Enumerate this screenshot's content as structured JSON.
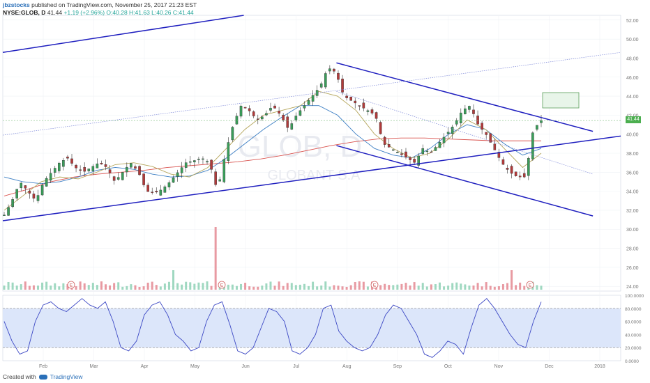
{
  "header": {
    "author": "jbzstocks",
    "published_text": "published on TradingView.com, November 25, 2017 21:23 EST",
    "symbol_line": "NYSE:GLOB, D",
    "last": "41.44",
    "change": "+1.19 (+2.96%)",
    "ohlc": "O:40.28 H:41.63 L:40.26 C:41.44"
  },
  "watermark": {
    "ticker": "GLOB, D",
    "name": "GLOBANT S.A"
  },
  "footer": {
    "created_with": "Created with",
    "brand": "TradingView"
  },
  "price_tag": "41.44",
  "chart_data": [
    {
      "type": "candlestick",
      "y_axis": {
        "ticks": [
          "52.00",
          "50.00",
          "48.00",
          "46.00",
          "44.00",
          "42.00",
          "40.00",
          "38.00",
          "36.00",
          "34.00",
          "32.00",
          "30.00",
          "28.00",
          "26.00",
          "24.00"
        ],
        "ylim": [
          23.5,
          52.5
        ]
      },
      "x_axis": {
        "ticks": [
          "Feb",
          "Mar",
          "Apr",
          "May",
          "Jun",
          "Jul",
          "Aug",
          "Sep",
          "Oct",
          "Nov",
          "Dec",
          "2018"
        ]
      },
      "close_path": [
        31.5,
        33.0,
        35.0,
        34.0,
        33.0,
        35.0,
        36.0,
        37.0,
        37.5,
        36.5,
        36.0,
        36.5,
        37.0,
        36.5,
        35.0,
        36.0,
        37.0,
        36.0,
        34.0,
        33.8,
        34.2,
        35.0,
        36.0,
        37.0,
        37.2,
        37.5,
        37.0,
        34.0,
        38.0,
        41.0,
        43.0,
        42.5,
        41.5,
        42.0,
        43.0,
        42.0,
        40.5,
        42.0,
        43.0,
        44.0,
        45.0,
        47.0,
        46.5,
        44.0,
        43.5,
        43.0,
        42.5,
        42.0,
        39.0,
        38.5,
        38.0,
        37.5,
        37.0,
        38.5,
        38.0,
        39.0,
        40.0,
        41.0,
        42.5,
        43.0,
        41.0,
        40.0,
        38.5,
        37.0,
        36.0,
        35.5,
        35.5,
        40.5,
        41.44
      ],
      "moving_averages": [
        {
          "color": "#d9534f",
          "values": [
            33.5,
            34.2,
            35.0,
            35.5,
            35.8,
            36.0,
            36.2,
            36.5,
            36.7,
            36.9,
            37.1,
            37.4,
            37.8,
            38.3,
            38.8,
            39.2,
            39.5,
            39.6,
            39.6,
            39.5,
            39.4,
            39.3,
            39.3,
            39.3
          ]
        },
        {
          "color": "#3d7fc4",
          "values": [
            35.5,
            35.0,
            34.8,
            35.0,
            35.5,
            36.2,
            36.5,
            36.3,
            35.8,
            35.5,
            35.6,
            36.2,
            37.5,
            39.0,
            40.5,
            41.8,
            43.0,
            43.0,
            42.0,
            40.0,
            38.5,
            37.8,
            37.5,
            38.5,
            40.0,
            41.0,
            40.5,
            39.0,
            37.8,
            38.5
          ]
        },
        {
          "color": "#b4a55a",
          "values": [
            32.0,
            33.5,
            35.0,
            35.5,
            35.3,
            36.0,
            36.8,
            37.0,
            36.6,
            35.8,
            35.5,
            36.5,
            38.5,
            40.5,
            42.0,
            42.5,
            43.0,
            44.5,
            44.0,
            42.5,
            40.0,
            38.5,
            37.5,
            38.0,
            39.5,
            41.5,
            40.5,
            38.5,
            36.5,
            38.0
          ]
        }
      ],
      "annotations": [
        {
          "kind": "trendline",
          "color": "#1f1fbf",
          "from": [
            0.0,
            30.9
          ],
          "to": [
            1.0,
            39.8
          ]
        },
        {
          "kind": "trendline",
          "color": "#1f1fbf",
          "from": [
            0.0,
            48.6
          ],
          "to": [
            0.39,
            52.5
          ]
        },
        {
          "kind": "trendline",
          "color": "#1f1fbf",
          "from": [
            0.54,
            47.5
          ],
          "to": [
            0.955,
            40.3
          ]
        },
        {
          "kind": "trendline",
          "color": "#1f1fbf",
          "from": [
            0.54,
            38.8
          ],
          "to": [
            0.955,
            31.4
          ]
        },
        {
          "kind": "dotted",
          "color": "#7b86d8",
          "from": [
            0.0,
            39.9
          ],
          "to": [
            1.0,
            48.6
          ]
        },
        {
          "kind": "dotted",
          "color": "#7b86d8",
          "from": [
            0.54,
            44.5
          ],
          "to": [
            0.955,
            35.8
          ]
        }
      ],
      "earnings_markers": [
        "E",
        "E",
        "E",
        "E"
      ]
    },
    {
      "type": "line",
      "name": "stochastic",
      "y_axis": {
        "ticks": [
          "100.0000",
          "80.0000",
          "60.0000",
          "40.0000",
          "20.0000",
          "0.0000"
        ],
        "ylim": [
          0,
          100
        ]
      },
      "band": [
        20,
        80
      ],
      "values": [
        60,
        30,
        10,
        15,
        60,
        85,
        90,
        80,
        75,
        85,
        95,
        85,
        80,
        90,
        60,
        20,
        15,
        30,
        70,
        85,
        90,
        70,
        40,
        30,
        15,
        20,
        60,
        85,
        90,
        55,
        15,
        10,
        20,
        50,
        80,
        75,
        60,
        15,
        10,
        20,
        40,
        80,
        85,
        45,
        30,
        20,
        15,
        20,
        40,
        70,
        85,
        80,
        60,
        40,
        10,
        5,
        15,
        30,
        25,
        10,
        50,
        85,
        95,
        80,
        60,
        40,
        25,
        20,
        60,
        90
      ]
    }
  ]
}
